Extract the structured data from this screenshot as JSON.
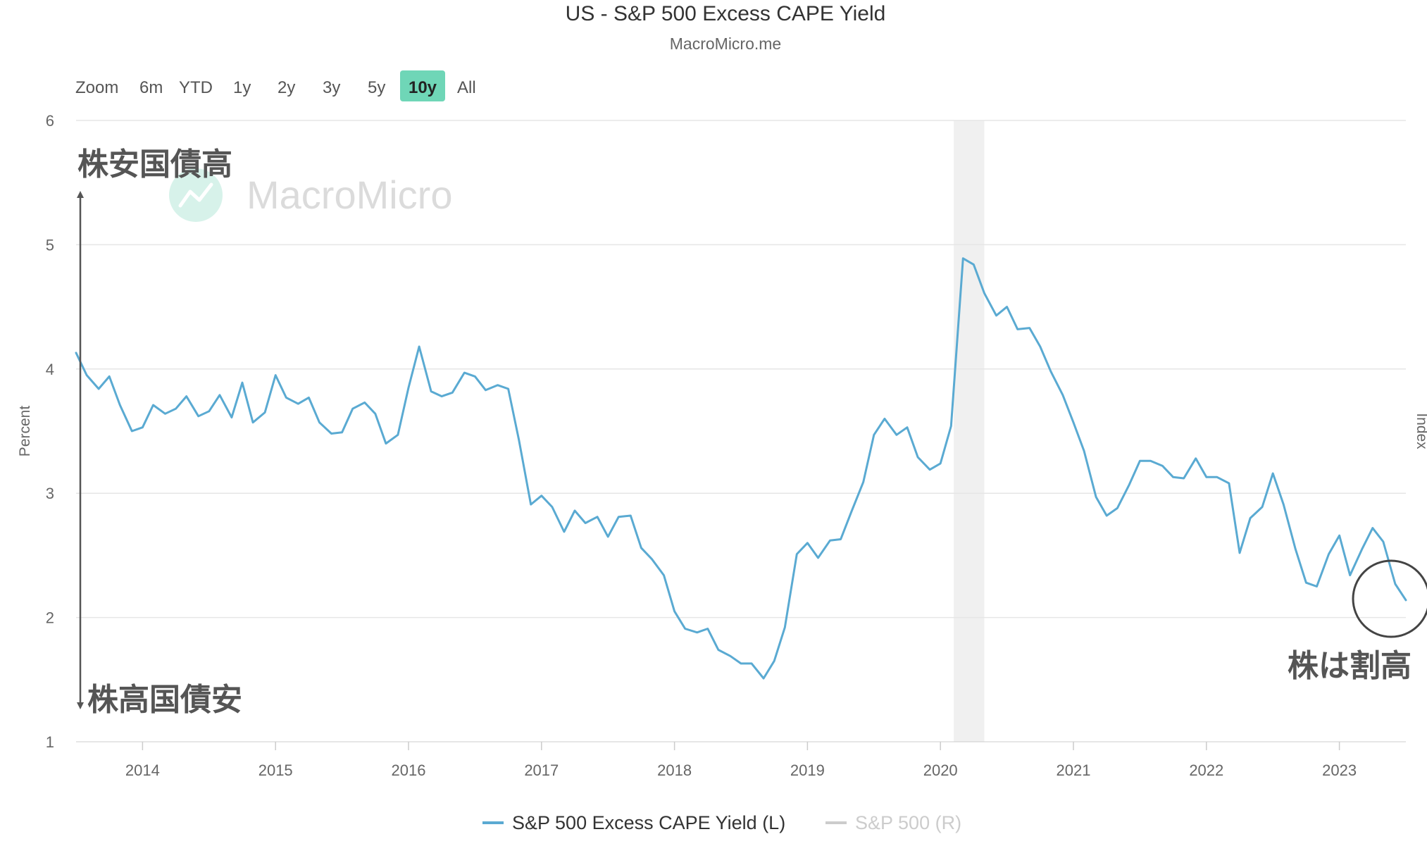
{
  "header": {
    "title": "US - S&P 500 Excess CAPE Yield",
    "subtitle": "MacroMicro.me"
  },
  "zoom": {
    "label": "Zoom",
    "options": [
      "6m",
      "YTD",
      "1y",
      "2y",
      "3y",
      "5y",
      "10y",
      "All"
    ],
    "selected": "10y"
  },
  "watermark": {
    "text": "MacroMicro"
  },
  "annotations": {
    "top": "株安国債高",
    "bottom": "株高国債安",
    "right": "株は割高"
  },
  "colors": {
    "series": "#5aaad2",
    "zoom_active_bg": "#6fd6b7",
    "recession_band": "#f0f0f0",
    "grid": "#e6e6e6",
    "annotation_text": "#555555",
    "secondary_legend": "#cccccc"
  },
  "chart_data": {
    "type": "line",
    "title": "US - S&P 500 Excess CAPE Yield",
    "subtitle": "MacroMicro.me",
    "ylabel": "Percent",
    "ylabel_right": "Index",
    "ylim": [
      1,
      6
    ],
    "yticks": [
      1,
      2,
      3,
      4,
      5,
      6
    ],
    "xlim": [
      2013.5,
      2023.5
    ],
    "xticks": [
      2014,
      2015,
      2016,
      2017,
      2018,
      2019,
      2020,
      2021,
      2022,
      2023
    ],
    "grid": true,
    "legend_position": "bottom-center",
    "shaded_periods": [
      {
        "start": 2020.1,
        "end": 2020.33
      }
    ],
    "series": [
      {
        "name": "S&P 500 Excess CAPE Yield (L)",
        "color": "#5aaad2",
        "x": [
          2013.5,
          2013.58,
          2013.67,
          2013.75,
          2013.83,
          2013.92,
          2014.0,
          2014.08,
          2014.17,
          2014.25,
          2014.33,
          2014.42,
          2014.5,
          2014.58,
          2014.67,
          2014.75,
          2014.83,
          2014.92,
          2015.0,
          2015.08,
          2015.17,
          2015.25,
          2015.33,
          2015.42,
          2015.5,
          2015.58,
          2015.67,
          2015.75,
          2015.83,
          2015.92,
          2016.0,
          2016.08,
          2016.17,
          2016.25,
          2016.33,
          2016.42,
          2016.5,
          2016.58,
          2016.67,
          2016.75,
          2016.83,
          2016.92,
          2017.0,
          2017.08,
          2017.17,
          2017.25,
          2017.33,
          2017.42,
          2017.5,
          2017.58,
          2017.67,
          2017.75,
          2017.83,
          2017.92,
          2018.0,
          2018.08,
          2018.17,
          2018.25,
          2018.33,
          2018.42,
          2018.5,
          2018.58,
          2018.67,
          2018.75,
          2018.83,
          2018.92,
          2019.0,
          2019.08,
          2019.17,
          2019.25,
          2019.33,
          2019.42,
          2019.5,
          2019.58,
          2019.67,
          2019.75,
          2019.83,
          2019.92,
          2020.0,
          2020.08,
          2020.17,
          2020.25,
          2020.33,
          2020.42,
          2020.5,
          2020.58,
          2020.67,
          2020.75,
          2020.83,
          2020.92,
          2021.0,
          2021.08,
          2021.17,
          2021.25,
          2021.33,
          2021.42,
          2021.5,
          2021.58,
          2021.67,
          2021.75,
          2021.83,
          2021.92,
          2022.0,
          2022.08,
          2022.17,
          2022.25,
          2022.33,
          2022.42,
          2022.5,
          2022.58,
          2022.67,
          2022.75,
          2022.83,
          2022.92,
          2023.0,
          2023.08,
          2023.17,
          2023.25,
          2023.33,
          2023.42,
          2023.5
        ],
        "values": [
          4.13,
          3.95,
          3.84,
          3.94,
          3.71,
          3.5,
          3.53,
          3.71,
          3.64,
          3.68,
          3.78,
          3.62,
          3.66,
          3.79,
          3.61,
          3.89,
          3.57,
          3.65,
          3.95,
          3.77,
          3.72,
          3.77,
          3.57,
          3.48,
          3.49,
          3.68,
          3.73,
          3.64,
          3.4,
          3.47,
          3.85,
          4.18,
          3.82,
          3.78,
          3.81,
          3.97,
          3.94,
          3.83,
          3.87,
          3.84,
          3.43,
          2.91,
          2.98,
          2.89,
          2.69,
          2.86,
          2.76,
          2.81,
          2.65,
          2.81,
          2.82,
          2.56,
          2.47,
          2.34,
          2.05,
          1.91,
          1.88,
          1.91,
          1.74,
          1.69,
          1.63,
          1.63,
          1.51,
          1.65,
          1.92,
          2.51,
          2.6,
          2.48,
          2.62,
          2.63,
          2.85,
          3.09,
          3.47,
          3.6,
          3.47,
          3.53,
          3.29,
          3.19,
          3.24,
          3.54,
          4.89,
          4.84,
          4.61,
          4.43,
          4.5,
          4.32,
          4.33,
          4.18,
          3.98,
          3.79,
          3.57,
          3.34,
          2.97,
          2.82,
          2.88,
          3.07,
          3.26,
          3.26,
          3.22,
          3.13,
          3.12,
          3.28,
          3.13,
          3.13,
          3.08,
          2.52,
          2.8,
          2.89,
          3.16,
          2.91,
          2.55,
          2.28,
          2.25,
          2.51,
          2.66,
          2.34,
          2.55,
          2.72,
          2.61,
          2.27,
          2.14
        ]
      },
      {
        "name": "S&P 500 (R)",
        "color": "#cccccc",
        "values": []
      }
    ]
  }
}
